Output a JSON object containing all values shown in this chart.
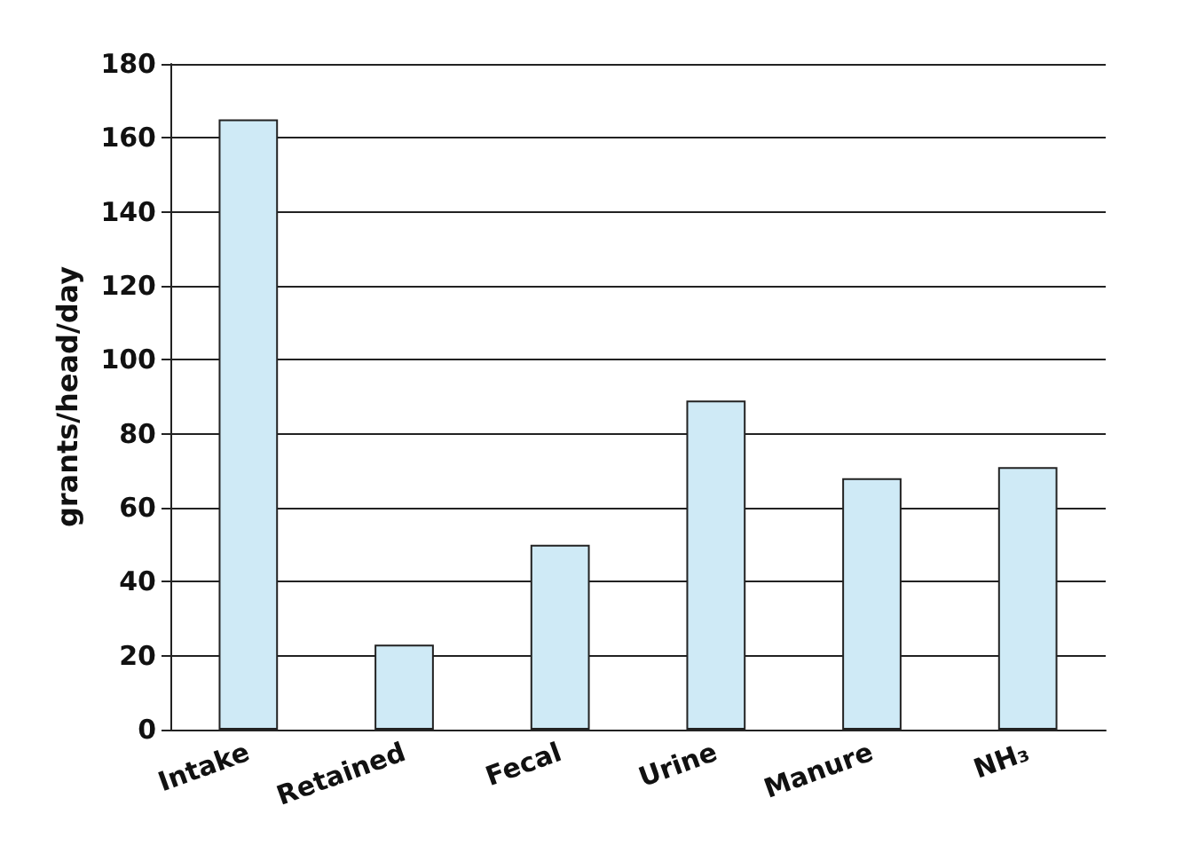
{
  "chart_data": {
    "type": "bar",
    "ylabel": "grants/head/day",
    "categories": [
      "Intake",
      "Retained",
      "Fecal",
      "Urine",
      "Manure",
      "NH₃"
    ],
    "values": [
      165,
      23,
      50,
      89,
      68,
      71
    ],
    "color": "#cfeaf6",
    "ylim": [
      0,
      180
    ],
    "yticks": [
      0,
      20,
      40,
      60,
      80,
      100,
      120,
      140,
      160,
      180
    ],
    "grid": "y"
  }
}
